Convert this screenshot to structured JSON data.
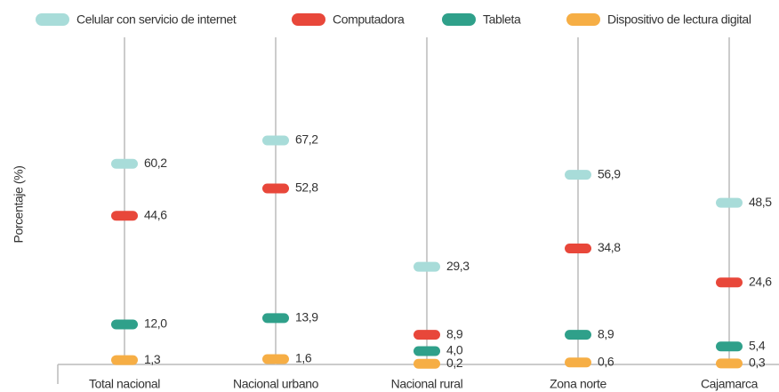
{
  "chart_data": {
    "type": "dot",
    "y_label": "Porcentaje (%)",
    "categories": [
      "Total nacional",
      "Nacional urbano",
      "Nacional rural",
      "Zona norte",
      "Cajamarca"
    ],
    "series": [
      {
        "name": "Celular con servicio de internet",
        "color": "#a8dcd9",
        "values": [
          60.2,
          67.2,
          29.3,
          56.9,
          48.5
        ],
        "value_labels": [
          "60,2",
          "67,2",
          "29,3",
          "56,9",
          "48,5"
        ]
      },
      {
        "name": "Computadora",
        "color": "#e8473a",
        "values": [
          44.6,
          52.8,
          8.9,
          34.8,
          24.6
        ],
        "value_labels": [
          "44,6",
          "52,8",
          "8,9",
          "34,8",
          "24,6"
        ]
      },
      {
        "name": "Tableta",
        "color": "#2fa08a",
        "values": [
          12.0,
          13.9,
          4.0,
          8.9,
          5.4
        ],
        "value_labels": [
          "12,0",
          "13,9",
          "4,0",
          "8,9",
          "5,4"
        ]
      },
      {
        "name": "Dispositivo de lectura digital",
        "color": "#f6ae45",
        "values": [
          1.3,
          1.6,
          0.2,
          0.6,
          0.3
        ],
        "value_labels": [
          "1,3",
          "1,6",
          "0,2",
          "0,6",
          "0,3"
        ]
      }
    ],
    "ylim": [
      0,
      100
    ],
    "legend": "top"
  }
}
